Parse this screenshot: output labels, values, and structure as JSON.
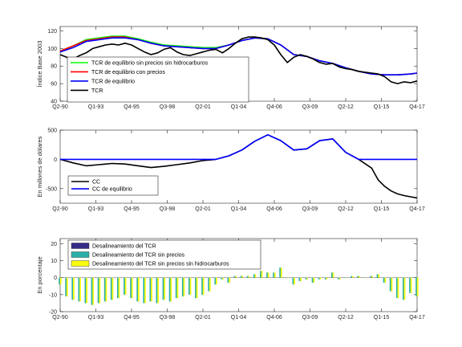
{
  "x_tick_labels": [
    "Q2-90",
    "Q1-93",
    "Q4-95",
    "Q3-98",
    "Q2-01",
    "Q1-04",
    "Q4-06",
    "Q3-09",
    "Q2-12",
    "Q1-15",
    "Q4-17"
  ],
  "chart_data": [
    {
      "type": "line",
      "ylabel": "Índice Base 2003",
      "ylim": [
        40,
        125
      ],
      "yticks": [
        40,
        60,
        80,
        100,
        120
      ],
      "x_range": [
        0,
        110
      ],
      "legend_position": "bottom-left",
      "series": [
        {
          "name": "TCR de equilibrio sin precios sin hidrocarburos",
          "color": "#00ff00",
          "x": [
            0,
            4,
            8,
            12,
            16,
            20,
            24,
            28,
            32,
            36,
            40,
            44,
            48,
            52,
            56,
            60,
            64,
            68,
            72,
            76,
            80,
            84,
            88,
            92,
            96,
            100,
            104,
            108,
            110
          ],
          "y": [
            97,
            103,
            110,
            112,
            114,
            114,
            111,
            107,
            104,
            103,
            102,
            101,
            101,
            104,
            109,
            112,
            111,
            104,
            93,
            91,
            86,
            83,
            78,
            74,
            71,
            70,
            70,
            71,
            72
          ]
        },
        {
          "name": "TCR de equilibrio con precios",
          "color": "#ff0000",
          "x": [
            0,
            4,
            8,
            12,
            16,
            20,
            24,
            28,
            32,
            36,
            40,
            44,
            48,
            52,
            56,
            60,
            64,
            68,
            72,
            76,
            80,
            84,
            88,
            92,
            96,
            100,
            104,
            108,
            110
          ],
          "y": [
            97,
            103,
            109,
            111,
            113,
            113,
            110,
            106,
            103,
            102,
            101,
            100,
            100,
            104,
            109,
            112,
            111,
            104,
            93,
            91,
            86,
            83,
            78,
            74,
            71,
            70,
            70,
            71,
            72
          ]
        },
        {
          "name": "TCR de equilibrio",
          "color": "#0000ff",
          "x": [
            0,
            4,
            8,
            12,
            16,
            20,
            24,
            28,
            32,
            36,
            40,
            44,
            48,
            52,
            56,
            60,
            64,
            68,
            72,
            76,
            80,
            84,
            88,
            92,
            96,
            100,
            104,
            108,
            110
          ],
          "y": [
            96,
            101,
            108,
            110,
            112,
            112,
            110,
            106,
            103,
            102,
            101,
            100,
            100,
            104,
            109,
            112,
            111,
            104,
            93,
            91,
            86,
            83,
            78,
            74,
            71,
            70,
            70,
            71,
            72
          ]
        },
        {
          "name": "TCR",
          "color": "#000000",
          "x": [
            0,
            2,
            4,
            6,
            8,
            10,
            12,
            14,
            16,
            18,
            20,
            22,
            24,
            26,
            28,
            30,
            32,
            34,
            36,
            38,
            40,
            42,
            44,
            46,
            48,
            50,
            52,
            54,
            56,
            58,
            60,
            62,
            64,
            66,
            68,
            70,
            72,
            74,
            76,
            78,
            80,
            82,
            84,
            86,
            88,
            90,
            92,
            94,
            96,
            98,
            100,
            102,
            104,
            106,
            108,
            110
          ],
          "y": [
            93,
            90,
            88,
            92,
            95,
            100,
            102,
            104,
            105,
            104,
            106,
            104,
            100,
            96,
            93,
            95,
            99,
            101,
            96,
            93,
            92,
            94,
            96,
            98,
            99,
            95,
            100,
            106,
            111,
            113,
            113,
            112,
            110,
            104,
            93,
            84,
            90,
            93,
            91,
            88,
            84,
            82,
            83,
            79,
            77,
            76,
            74,
            73,
            72,
            71,
            68,
            62,
            60,
            62,
            61,
            63
          ]
        }
      ]
    },
    {
      "type": "line",
      "ylabel": "En millones de dólares",
      "ylim": [
        -750,
        500
      ],
      "yticks": [
        -500,
        0,
        500
      ],
      "x_range": [
        0,
        110
      ],
      "legend_position": "bottom-left",
      "series": [
        {
          "name": "CC",
          "color": "#000000",
          "x": [
            0,
            4,
            8,
            12,
            16,
            20,
            24,
            28,
            32,
            36,
            40,
            44,
            48,
            52,
            56,
            60,
            64,
            68,
            72,
            76,
            80,
            84,
            88,
            92,
            96,
            97,
            98,
            100,
            102,
            104,
            106,
            108,
            110
          ],
          "y": [
            0,
            -60,
            -110,
            -90,
            -70,
            -80,
            -110,
            -140,
            -120,
            -90,
            -60,
            -20,
            0,
            60,
            160,
            310,
            420,
            320,
            160,
            180,
            320,
            350,
            120,
            0,
            -150,
            -250,
            -350,
            -460,
            -540,
            -590,
            -620,
            -640,
            -660
          ]
        },
        {
          "name": "CC de equilibrio",
          "color": "#0000ff",
          "x": [
            0,
            4,
            8,
            12,
            16,
            20,
            24,
            28,
            32,
            36,
            40,
            44,
            48,
            52,
            56,
            60,
            64,
            68,
            72,
            76,
            80,
            84,
            88,
            92,
            96,
            100,
            104,
            108,
            110
          ],
          "y": [
            0,
            0,
            0,
            0,
            0,
            0,
            0,
            0,
            0,
            0,
            0,
            0,
            0,
            60,
            160,
            310,
            420,
            320,
            160,
            180,
            320,
            350,
            120,
            0,
            0,
            0,
            0,
            0,
            0
          ]
        }
      ]
    },
    {
      "type": "bar",
      "ylabel": "En porcentaje",
      "ylim": [
        -20,
        23
      ],
      "yticks": [
        -20,
        -10,
        0,
        10,
        20
      ],
      "x_range": [
        0,
        110
      ],
      "legend_position": "top-left",
      "series": [
        {
          "name": "Desalineamiento del TCR",
          "color": "#352a87"
        },
        {
          "name": "Desalineamiento del TCR sin precios",
          "color": "#2ab1a6"
        },
        {
          "name": "Desalineamiento del TCR sin precios sin hidrocarburos",
          "color": "#f9fb0e"
        }
      ],
      "x": [
        0,
        2,
        4,
        6,
        8,
        10,
        12,
        14,
        16,
        18,
        20,
        22,
        24,
        26,
        28,
        30,
        32,
        34,
        36,
        38,
        40,
        42,
        44,
        46,
        48,
        50,
        52,
        54,
        56,
        58,
        60,
        62,
        64,
        66,
        68,
        70,
        72,
        74,
        76,
        78,
        80,
        82,
        84,
        86,
        88,
        90,
        92,
        94,
        96,
        98,
        100,
        102,
        104,
        106,
        108,
        110
      ],
      "values": [
        -4,
        -11,
        -13,
        -14,
        -15,
        -16,
        -15,
        -14,
        -13,
        -12,
        -10,
        -12,
        -14,
        -15,
        -14,
        -15,
        -13,
        -14,
        -12,
        -11,
        -10,
        -12,
        -10,
        -8,
        -4,
        -1,
        -3,
        1,
        1,
        1,
        2,
        4,
        3,
        3,
        6,
        0,
        -4,
        -2,
        -1,
        -3,
        -1,
        -1,
        3,
        -1,
        0,
        1,
        1,
        0,
        1,
        2,
        -3,
        -8,
        -12,
        -13,
        -9,
        -11
      ]
    }
  ]
}
